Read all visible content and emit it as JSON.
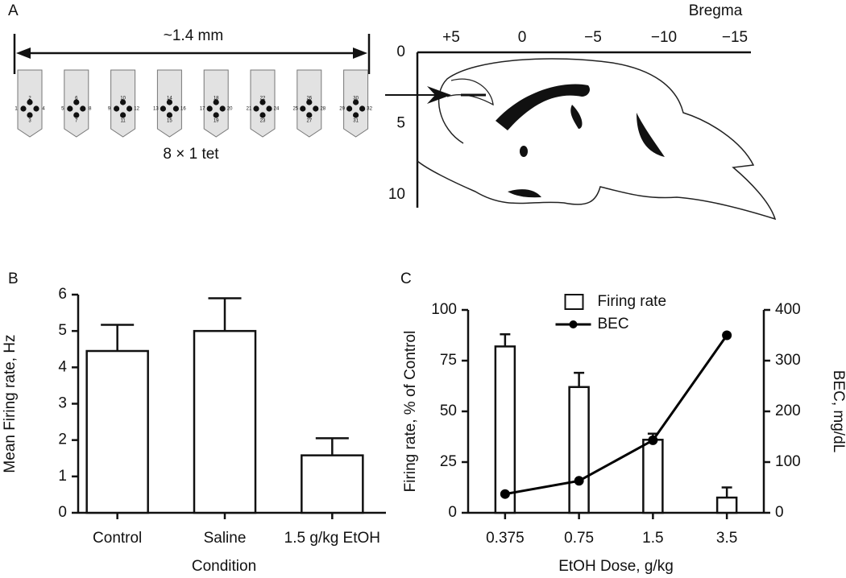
{
  "diagram": {
    "panel_label": "A",
    "span_label": "~1.4 mm",
    "array_label": "8 × 1 tet",
    "probes": [
      {
        "top": "2",
        "bottom": "3",
        "left": "1",
        "right": "4"
      },
      {
        "top": "6",
        "bottom": "7",
        "left": "5",
        "right": "8"
      },
      {
        "top": "10",
        "bottom": "11",
        "left": "9",
        "right": "12"
      },
      {
        "top": "14",
        "bottom": "15",
        "left": "13",
        "right": "16"
      },
      {
        "top": "18",
        "bottom": "19",
        "left": "17",
        "right": "20"
      },
      {
        "top": "22",
        "bottom": "23",
        "left": "21",
        "right": "24"
      },
      {
        "top": "26",
        "bottom": "27",
        "left": "25",
        "right": "28"
      },
      {
        "top": "30",
        "bottom": "31",
        "left": "29",
        "right": "32"
      }
    ],
    "bregma_title": "Bregma",
    "bregma_ticks": [
      {
        "value": 5,
        "label": "+5"
      },
      0,
      {
        "value": -5,
        "label": "−5"
      },
      {
        "value": -10,
        "label": "−10"
      },
      {
        "value": -15,
        "label": "−15"
      }
    ],
    "depth_ticks": [
      0,
      5,
      10
    ]
  },
  "chart_data": [
    {
      "type": "bar",
      "panel_label": "B",
      "xlabel": "Condition",
      "ylabel": "Mean Firing rate, Hz",
      "categories": [
        "Control",
        "Saline",
        "1.5 g/kg EtOH"
      ],
      "values": [
        4.45,
        5.0,
        1.58
      ],
      "errors": [
        0.72,
        0.9,
        0.47
      ],
      "color": "#ffffff",
      "ylim": [
        0,
        6
      ],
      "yticks": [
        0,
        1,
        2,
        3,
        4,
        5,
        6
      ]
    },
    {
      "type": "combo",
      "panel_label": "C",
      "xlabel": "EtOH Dose, g/kg",
      "ylabel": "Firing rate, % of Control",
      "y2label": "BEC, mg/dL",
      "categories": [
        "0.375",
        "0.75",
        "1.5",
        "3.5"
      ],
      "series": [
        {
          "name": "Firing rate",
          "type": "bar",
          "color": "#ffffff",
          "values": [
            82,
            62,
            36,
            7.5
          ],
          "errors": [
            6,
            7,
            3,
            5
          ]
        },
        {
          "name": "BEC",
          "type": "line",
          "axis": "y2",
          "color": "#000000",
          "values": [
            37,
            63,
            143,
            350
          ]
        }
      ],
      "ylim": [
        0,
        100
      ],
      "yticks": [
        0,
        25,
        50,
        75,
        100
      ],
      "y2lim": [
        0,
        400
      ],
      "y2ticks": [
        0,
        100,
        200,
        300,
        400
      ],
      "legend": "top-center"
    }
  ]
}
